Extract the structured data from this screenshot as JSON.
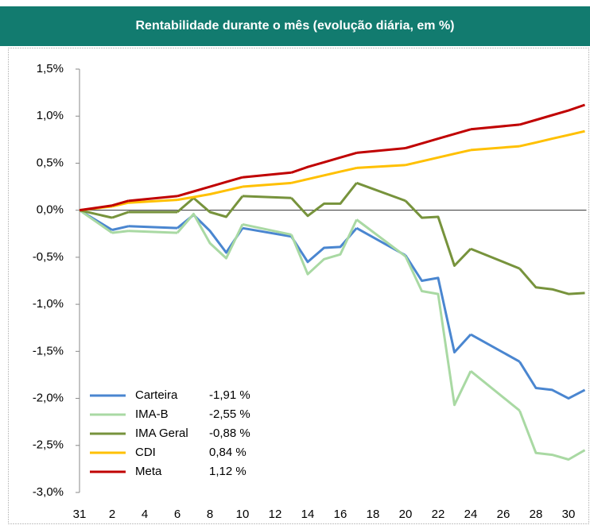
{
  "chart_data": {
    "type": "line",
    "title": "Rentabilidade durante o mês (evolução diária, em %)",
    "categories": [
      31,
      null,
      2,
      null,
      4,
      null,
      6,
      null,
      8,
      null,
      10,
      null,
      12,
      null,
      14,
      null,
      16,
      null,
      18,
      null,
      20,
      null,
      22,
      null,
      24,
      null,
      26,
      null,
      28,
      null,
      30,
      null
    ],
    "ylim": [
      -3.0,
      1.5
    ],
    "yticks": [
      {
        "value": 1.5,
        "label": "1,5%"
      },
      {
        "value": 1.0,
        "label": "1,0%"
      },
      {
        "value": 0.5,
        "label": "0,5%"
      },
      {
        "value": 0.0,
        "label": "0,0%"
      },
      {
        "value": -0.5,
        "label": "-0,5%"
      },
      {
        "value": -1.0,
        "label": "-1,0%"
      },
      {
        "value": -1.5,
        "label": "-1,5%"
      },
      {
        "value": -2.0,
        "label": "-2,0%"
      },
      {
        "value": -2.5,
        "label": "-2,5%"
      },
      {
        "value": -3.0,
        "label": "-3,0%"
      }
    ],
    "legend": "lower left",
    "series": [
      {
        "name": "Carteira",
        "color": "#4a86d0",
        "result": {
          "value": -1.91,
          "label": "-1,91 %"
        },
        "values": [
          0,
          null,
          -0.21,
          -0.17,
          null,
          null,
          -0.19,
          -0.05,
          -0.22,
          -0.45,
          -0.19,
          null,
          null,
          -0.28,
          -0.55,
          -0.4,
          -0.39,
          -0.19,
          null,
          null,
          -0.48,
          -0.75,
          -0.72,
          -1.51,
          -1.32,
          null,
          null,
          -1.61,
          -1.89,
          -1.91,
          -2.0,
          -1.91
        ]
      },
      {
        "name": "IMA-B",
        "color": "#a9d9a3",
        "result": {
          "value": -2.55,
          "label": "-2,55 %"
        },
        "values": [
          0,
          null,
          -0.24,
          -0.22,
          null,
          null,
          -0.24,
          -0.04,
          -0.35,
          -0.51,
          -0.15,
          null,
          null,
          -0.26,
          -0.68,
          -0.52,
          -0.47,
          -0.1,
          null,
          null,
          -0.49,
          -0.86,
          -0.89,
          -2.07,
          -1.71,
          null,
          null,
          -2.13,
          -2.58,
          -2.6,
          -2.65,
          -2.55
        ]
      },
      {
        "name": "IMA Geral",
        "color": "#77933c",
        "result": {
          "value": -0.88,
          "label": "-0,88 %"
        },
        "values": [
          0,
          null,
          -0.08,
          -0.02,
          null,
          null,
          -0.02,
          0.13,
          -0.02,
          -0.07,
          0.15,
          null,
          null,
          0.13,
          -0.06,
          0.07,
          0.07,
          0.29,
          null,
          null,
          0.1,
          -0.08,
          -0.07,
          -0.59,
          -0.41,
          null,
          null,
          -0.62,
          -0.82,
          -0.84,
          -0.89,
          -0.88
        ]
      },
      {
        "name": "CDI",
        "color": "#ffc000",
        "result": {
          "value": 0.84,
          "label": "0,84 %"
        },
        "values": [
          0,
          null,
          0.04,
          0.08,
          null,
          null,
          0.11,
          0.14,
          0.17,
          0.21,
          0.25,
          null,
          null,
          0.29,
          0.33,
          0.37,
          0.41,
          0.45,
          null,
          null,
          0.48,
          0.52,
          0.56,
          0.6,
          0.64,
          null,
          null,
          0.68,
          0.72,
          0.76,
          0.8,
          0.84
        ]
      },
      {
        "name": "Meta",
        "color": "#c00000",
        "result": {
          "value": 1.12,
          "label": "1,12 %"
        },
        "values": [
          0,
          null,
          0.05,
          0.1,
          null,
          null,
          0.15,
          0.2,
          0.25,
          0.3,
          0.35,
          null,
          null,
          0.4,
          0.46,
          0.51,
          0.56,
          0.61,
          null,
          null,
          0.66,
          0.71,
          0.76,
          0.81,
          0.86,
          null,
          null,
          0.91,
          0.96,
          1.01,
          1.06,
          1.12
        ]
      }
    ]
  }
}
